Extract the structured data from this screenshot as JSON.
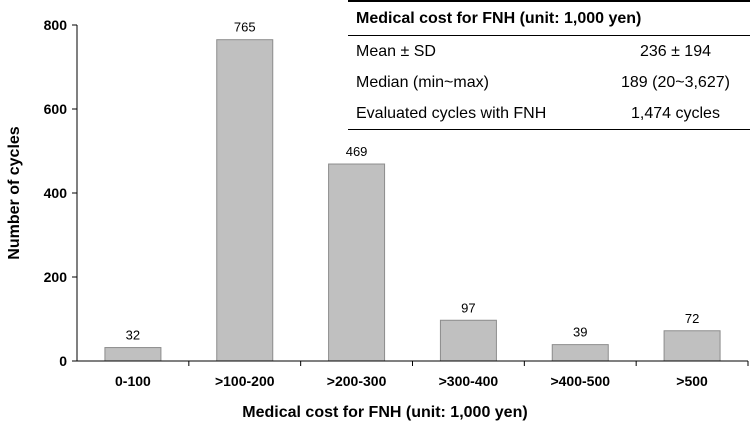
{
  "chart_data": {
    "type": "bar",
    "categories": [
      "0-100",
      ">100-200",
      ">200-300",
      ">300-400",
      ">400-500",
      ">500"
    ],
    "values": [
      32,
      765,
      469,
      97,
      39,
      72
    ],
    "data_labels": [
      "32",
      "765",
      "469",
      "97",
      "39",
      "72"
    ],
    "xlabel": "Medical cost for FNH (unit: 1,000 yen)",
    "ylabel": "Number of cycles",
    "ylim": [
      0,
      800
    ],
    "yticks": [
      "0",
      "200",
      "400",
      "600",
      "800"
    ],
    "grid": false,
    "colors": {
      "bar_fill": "#c0c0c0",
      "bar_stroke": "#8c8c8c"
    }
  },
  "table": {
    "title": "Medical cost for FNH (unit: 1,000 yen)",
    "rows": [
      {
        "label": "Mean ± SD",
        "value": "236 ± 194"
      },
      {
        "label": "Median (min~max)",
        "value": "189 (20~3,627)"
      },
      {
        "label": "Evaluated cycles with FNH",
        "value": "1,474 cycles"
      }
    ]
  }
}
